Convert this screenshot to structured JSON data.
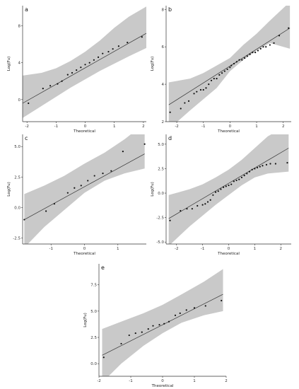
{
  "colors": {
    "band": "#c9c9c9",
    "line": "#333333",
    "points": "#111111"
  },
  "chart_data": [
    {
      "type": "scatter",
      "panel": "a",
      "xlabel": "Theoretical",
      "ylabel": "Log(Fu)",
      "xlim": [
        -2.15,
        2.1
      ],
      "ylim": [
        -2.4,
        10.2
      ],
      "xticks": [
        -2,
        -1,
        0,
        1,
        2
      ],
      "yticks": [
        0,
        4,
        8
      ],
      "ref_line": [
        [
          -2.15,
          -0.4
        ],
        [
          2.1,
          7.2
        ]
      ],
      "band": {
        "x": [
          -2.15,
          -1.5,
          -1,
          -0.5,
          0,
          0.5,
          1,
          1.5,
          2.1
        ],
        "lower": [
          -2.0,
          -0.7,
          0.3,
          1.3,
          2.2,
          3.1,
          3.9,
          4.7,
          5.6
        ],
        "upper": [
          2.6,
          2.9,
          3.4,
          4.2,
          5.2,
          6.4,
          7.8,
          9.0,
          10.1
        ]
      },
      "points": [
        [
          -1.95,
          -0.4
        ],
        [
          -1.45,
          1.2
        ],
        [
          -1.2,
          1.5
        ],
        [
          -0.95,
          1.7
        ],
        [
          -0.8,
          2.0
        ],
        [
          -0.6,
          2.7
        ],
        [
          -0.45,
          2.9
        ],
        [
          -0.3,
          3.2
        ],
        [
          -0.15,
          3.5
        ],
        [
          0,
          3.8
        ],
        [
          0.15,
          4.0
        ],
        [
          0.3,
          4.3
        ],
        [
          0.45,
          4.6
        ],
        [
          0.6,
          5.0
        ],
        [
          0.8,
          5.2
        ],
        [
          0.95,
          5.5
        ],
        [
          1.15,
          5.8
        ],
        [
          1.45,
          6.2
        ],
        [
          1.95,
          6.8
        ]
      ]
    },
    {
      "type": "scatter",
      "panel": "b",
      "xlabel": "Theoretical",
      "ylabel": "Log(Fu)",
      "xlim": [
        -2.4,
        2.3
      ],
      "ylim": [
        2.0,
        8.2
      ],
      "xticks": [
        -2,
        -1,
        0,
        1,
        2
      ],
      "yticks": [
        2,
        4,
        6,
        8
      ],
      "ref_line": [
        [
          -2.3,
          2.9
        ],
        [
          2.25,
          7.0
        ]
      ],
      "band": {
        "x": [
          -2.3,
          -1.5,
          -1,
          -0.5,
          0,
          0.5,
          1,
          1.5,
          2.25
        ],
        "lower": [
          1.6,
          2.6,
          3.2,
          3.8,
          4.7,
          5.3,
          5.8,
          6.2,
          5.9
        ],
        "upper": [
          4.1,
          4.3,
          4.6,
          5.0,
          5.4,
          6.1,
          6.7,
          7.4,
          8.4
        ]
      },
      "points": [
        [
          -2.25,
          2.5
        ],
        [
          -1.85,
          2.7
        ],
        [
          -1.7,
          3.0
        ],
        [
          -1.55,
          3.1
        ],
        [
          -1.35,
          3.5
        ],
        [
          -1.25,
          3.6
        ],
        [
          -1.1,
          3.7
        ],
        [
          -1.0,
          3.7
        ],
        [
          -0.9,
          3.8
        ],
        [
          -0.8,
          4.0
        ],
        [
          -0.7,
          4.2
        ],
        [
          -0.6,
          4.3
        ],
        [
          -0.5,
          4.3
        ],
        [
          -0.4,
          4.5
        ],
        [
          -0.3,
          4.6
        ],
        [
          -0.2,
          4.7
        ],
        [
          -0.1,
          4.8
        ],
        [
          0.0,
          4.9
        ],
        [
          0.05,
          5.0
        ],
        [
          0.15,
          5.1
        ],
        [
          0.25,
          5.2
        ],
        [
          0.35,
          5.3
        ],
        [
          0.45,
          5.3
        ],
        [
          0.55,
          5.4
        ],
        [
          0.65,
          5.5
        ],
        [
          0.75,
          5.6
        ],
        [
          0.85,
          5.7
        ],
        [
          0.95,
          5.7
        ],
        [
          1.05,
          5.8
        ],
        [
          1.15,
          5.9
        ],
        [
          1.25,
          6.0
        ],
        [
          1.35,
          6.0
        ],
        [
          1.5,
          6.1
        ],
        [
          1.65,
          6.2
        ],
        [
          1.85,
          6.6
        ],
        [
          2.2,
          7.0
        ]
      ]
    },
    {
      "type": "scatter",
      "panel": "c",
      "xlabel": "Theoretical",
      "ylabel": "Log(Fu)",
      "xlim": [
        -1.85,
        1.85
      ],
      "ylim": [
        -3.0,
        6.0
      ],
      "xticks": [
        -1,
        0,
        1
      ],
      "yticks": [
        -2.5,
        0.0,
        2.5,
        5.0
      ],
      "ref_line": [
        [
          -1.8,
          -1.0
        ],
        [
          1.8,
          4.4
        ]
      ],
      "band": {
        "x": [
          -1.8,
          -1.2,
          -0.6,
          0,
          0.6,
          1.2,
          1.8
        ],
        "lower": [
          -3.3,
          -1.6,
          -0.2,
          1.2,
          2.2,
          2.8,
          3.2
        ],
        "upper": [
          1.1,
          1.8,
          2.6,
          3.6,
          4.5,
          5.6,
          6.9
        ]
      },
      "points": [
        [
          -1.8,
          -1.0
        ],
        [
          -1.15,
          -0.3
        ],
        [
          -0.9,
          0.3
        ],
        [
          -0.5,
          1.2
        ],
        [
          -0.3,
          1.6
        ],
        [
          -0.1,
          1.8
        ],
        [
          0.1,
          2.2
        ],
        [
          0.3,
          2.6
        ],
        [
          0.55,
          2.8
        ],
        [
          0.8,
          3.0
        ],
        [
          1.15,
          4.6
        ],
        [
          1.8,
          5.2
        ]
      ]
    },
    {
      "type": "scatter",
      "panel": "d",
      "xlabel": "Theoretical",
      "ylabel": "Log(Fu)",
      "xlim": [
        -2.4,
        2.4
      ],
      "ylim": [
        -5.2,
        6.0
      ],
      "xticks": [
        -2,
        -1,
        0,
        1,
        2
      ],
      "yticks": [
        -5.0,
        -2.5,
        0.0,
        2.5,
        5.0
      ],
      "ref_line": [
        [
          -2.3,
          -2.6
        ],
        [
          2.3,
          4.6
        ]
      ],
      "band": {
        "x": [
          -2.3,
          -1.5,
          -1,
          -0.5,
          0,
          0.5,
          1,
          1.5,
          2.3
        ],
        "lower": [
          -5.4,
          -3.4,
          -2.3,
          -1.2,
          -0.2,
          0.8,
          1.6,
          2.0,
          2.2
        ],
        "upper": [
          -0.2,
          0.4,
          0.9,
          1.6,
          2.4,
          3.4,
          4.6,
          5.8,
          7.0
        ]
      },
      "points": [
        [
          -2.25,
          -2.8
        ],
        [
          -1.85,
          -1.8
        ],
        [
          -1.6,
          -1.6
        ],
        [
          -1.4,
          -1.6
        ],
        [
          -1.2,
          -1.3
        ],
        [
          -1.0,
          -1.2
        ],
        [
          -0.9,
          -1.1
        ],
        [
          -0.8,
          -0.9
        ],
        [
          -0.7,
          -0.7
        ],
        [
          -0.6,
          -0.2
        ],
        [
          -0.5,
          0.1
        ],
        [
          -0.4,
          0.2
        ],
        [
          -0.3,
          0.4
        ],
        [
          -0.2,
          0.6
        ],
        [
          -0.1,
          0.7
        ],
        [
          0.0,
          0.8
        ],
        [
          0.1,
          0.9
        ],
        [
          0.2,
          1.2
        ],
        [
          0.3,
          1.3
        ],
        [
          0.4,
          1.4
        ],
        [
          0.5,
          1.6
        ],
        [
          0.6,
          1.8
        ],
        [
          0.7,
          2.0
        ],
        [
          0.8,
          2.2
        ],
        [
          0.9,
          2.4
        ],
        [
          1.0,
          2.5
        ],
        [
          1.1,
          2.6
        ],
        [
          1.2,
          2.7
        ],
        [
          1.3,
          2.8
        ],
        [
          1.45,
          2.9
        ],
        [
          1.6,
          3.0
        ],
        [
          1.8,
          3.0
        ],
        [
          2.25,
          3.1
        ]
      ]
    },
    {
      "type": "scatter",
      "panel": "e",
      "xlabel": "Theoretical",
      "ylabel": "Log(Fu)",
      "xlim": [
        -2.0,
        2.0
      ],
      "ylim": [
        -1.2,
        9.5
      ],
      "xticks": [
        -2,
        -1,
        0,
        1,
        2
      ],
      "yticks": [
        0.0,
        2.5,
        5.0,
        7.5
      ],
      "ref_line": [
        [
          -1.9,
          0.8
        ],
        [
          1.9,
          6.6
        ]
      ],
      "band": {
        "x": [
          -1.9,
          -1.3,
          -0.6,
          0,
          0.6,
          1.3,
          1.9
        ],
        "lower": [
          -1.8,
          0.0,
          1.7,
          2.9,
          3.9,
          4.6,
          5.0
        ],
        "upper": [
          3.3,
          4.0,
          4.8,
          5.6,
          6.6,
          7.8,
          9.0
        ]
      },
      "points": [
        [
          -1.85,
          0.6
        ],
        [
          -1.3,
          1.9
        ],
        [
          -1.05,
          2.7
        ],
        [
          -0.85,
          2.9
        ],
        [
          -0.65,
          3.0
        ],
        [
          -0.45,
          3.3
        ],
        [
          -0.3,
          3.6
        ],
        [
          -0.1,
          3.7
        ],
        [
          0.05,
          3.8
        ],
        [
          0.2,
          4.0
        ],
        [
          0.4,
          4.6
        ],
        [
          0.55,
          4.8
        ],
        [
          0.75,
          5.1
        ],
        [
          1.0,
          5.3
        ],
        [
          1.35,
          5.5
        ],
        [
          1.85,
          6.0
        ]
      ]
    }
  ]
}
